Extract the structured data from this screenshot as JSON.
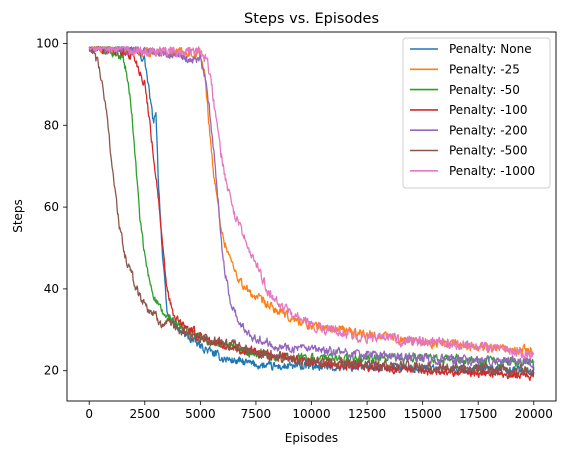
{
  "chart_data": {
    "type": "line",
    "title": "Steps vs. Episodes",
    "xlabel": "Episodes",
    "ylabel": "Steps",
    "xlim": [
      -1000,
      21000
    ],
    "ylim": [
      12.6,
      102.8
    ],
    "xticks": [
      0,
      2500,
      5000,
      7500,
      10000,
      12500,
      15000,
      17500,
      20000
    ],
    "xtick_labels": [
      "0",
      "2500",
      "5000",
      "7500",
      "10000",
      "12500",
      "15000",
      "17500",
      "20000"
    ],
    "yticks": [
      20,
      40,
      60,
      80,
      100
    ],
    "ytick_labels": [
      "20",
      "40",
      "60",
      "80",
      "100"
    ],
    "grid": false,
    "legend_position": "top-right",
    "series": [
      {
        "name": "Penalty: None",
        "color": "#1f77b4",
        "points": [
          [
            0,
            99
          ],
          [
            1000,
            99
          ],
          [
            2000,
            98.5
          ],
          [
            2500,
            96
          ],
          [
            2700,
            88
          ],
          [
            2900,
            80
          ],
          [
            3000,
            84
          ],
          [
            3100,
            68
          ],
          [
            3300,
            48
          ],
          [
            3500,
            34
          ],
          [
            4000,
            30
          ],
          [
            5000,
            26
          ],
          [
            6000,
            23
          ],
          [
            7000,
            22
          ],
          [
            8000,
            21
          ],
          [
            10000,
            21
          ],
          [
            12500,
            21
          ],
          [
            15000,
            20.5
          ],
          [
            17500,
            20.5
          ],
          [
            20000,
            20
          ]
        ],
        "noise": 1.6
      },
      {
        "name": "Penalty: -25",
        "color": "#ff7f0e",
        "points": [
          [
            0,
            99
          ],
          [
            2000,
            98
          ],
          [
            3000,
            98
          ],
          [
            4000,
            98
          ],
          [
            5000,
            97.5
          ],
          [
            5200,
            92
          ],
          [
            5400,
            80
          ],
          [
            5600,
            68
          ],
          [
            5800,
            60
          ],
          [
            6000,
            53
          ],
          [
            6500,
            45
          ],
          [
            7000,
            40
          ],
          [
            8000,
            36
          ],
          [
            9000,
            33
          ],
          [
            10000,
            31
          ],
          [
            12500,
            29
          ],
          [
            15000,
            27
          ],
          [
            17500,
            26
          ],
          [
            20000,
            25
          ]
        ],
        "noise": 1.8
      },
      {
        "name": "Penalty: -50",
        "color": "#2ca02c",
        "points": [
          [
            0,
            99
          ],
          [
            500,
            98.5
          ],
          [
            1000,
            98
          ],
          [
            1500,
            97
          ],
          [
            1700,
            92
          ],
          [
            1900,
            84
          ],
          [
            2100,
            70
          ],
          [
            2300,
            56
          ],
          [
            2500,
            48
          ],
          [
            2700,
            42
          ],
          [
            3000,
            37
          ],
          [
            3300,
            34
          ],
          [
            4000,
            31
          ],
          [
            5000,
            28
          ],
          [
            6000,
            26
          ],
          [
            7500,
            24
          ],
          [
            10000,
            23
          ],
          [
            12500,
            23
          ],
          [
            15000,
            23
          ],
          [
            17500,
            22.5
          ],
          [
            20000,
            22
          ]
        ],
        "noise": 1.7
      },
      {
        "name": "Penalty: -100",
        "color": "#d62728",
        "points": [
          [
            0,
            99
          ],
          [
            1000,
            98.5
          ],
          [
            2000,
            97
          ],
          [
            2500,
            90
          ],
          [
            2700,
            82
          ],
          [
            2900,
            72
          ],
          [
            3100,
            63
          ],
          [
            3300,
            50
          ],
          [
            3500,
            40
          ],
          [
            3800,
            33
          ],
          [
            4500,
            30
          ],
          [
            5500,
            27
          ],
          [
            7000,
            25
          ],
          [
            9000,
            23
          ],
          [
            10000,
            22
          ],
          [
            12500,
            21
          ],
          [
            15000,
            20
          ],
          [
            17500,
            19.5
          ],
          [
            20000,
            19
          ]
        ],
        "noise": 1.7
      },
      {
        "name": "Penalty: -200",
        "color": "#9467bd",
        "points": [
          [
            0,
            99
          ],
          [
            2000,
            98.5
          ],
          [
            3000,
            98
          ],
          [
            4000,
            97.5
          ],
          [
            4500,
            96
          ],
          [
            5000,
            96
          ],
          [
            5200,
            92
          ],
          [
            5400,
            84
          ],
          [
            5600,
            74
          ],
          [
            5800,
            62
          ],
          [
            6000,
            48
          ],
          [
            6300,
            38
          ],
          [
            6800,
            31
          ],
          [
            7500,
            28
          ],
          [
            8500,
            26
          ],
          [
            10000,
            25
          ],
          [
            12500,
            24
          ],
          [
            15000,
            23
          ],
          [
            17500,
            22.5
          ],
          [
            20000,
            22
          ]
        ],
        "noise": 1.7
      },
      {
        "name": "Penalty: -500",
        "color": "#8c564b",
        "points": [
          [
            0,
            99
          ],
          [
            200,
            98
          ],
          [
            400,
            95
          ],
          [
            600,
            90
          ],
          [
            800,
            82
          ],
          [
            1000,
            72
          ],
          [
            1200,
            62
          ],
          [
            1400,
            54
          ],
          [
            1600,
            48
          ],
          [
            1800,
            45
          ],
          [
            2000,
            42
          ],
          [
            2300,
            38
          ],
          [
            2700,
            35
          ],
          [
            3200,
            32
          ],
          [
            4000,
            30
          ],
          [
            5000,
            28
          ],
          [
            6500,
            26
          ],
          [
            8000,
            24
          ],
          [
            10000,
            22
          ],
          [
            12500,
            21.5
          ],
          [
            15000,
            21
          ],
          [
            17500,
            20.5
          ],
          [
            20000,
            20
          ]
        ],
        "noise": 2.0
      },
      {
        "name": "Penalty: -1000",
        "color": "#e377c2",
        "points": [
          [
            0,
            99
          ],
          [
            2000,
            98.5
          ],
          [
            4000,
            98
          ],
          [
            5000,
            98
          ],
          [
            5300,
            96
          ],
          [
            5500,
            90
          ],
          [
            5700,
            82
          ],
          [
            5900,
            74
          ],
          [
            6100,
            68
          ],
          [
            6400,
            60
          ],
          [
            7000,
            52
          ],
          [
            7500,
            46
          ],
          [
            8000,
            40
          ],
          [
            9000,
            34
          ],
          [
            10000,
            31
          ],
          [
            12500,
            28
          ],
          [
            15000,
            27
          ],
          [
            17500,
            26
          ],
          [
            20000,
            24
          ]
        ],
        "noise": 2.0
      }
    ]
  }
}
